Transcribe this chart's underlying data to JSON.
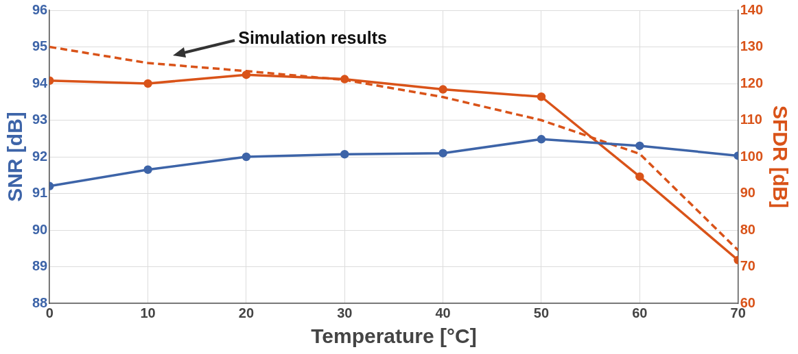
{
  "chart_data": {
    "type": "line",
    "xlabel": "Temperature [°C]",
    "ylabel": "SNR [dB]",
    "y2label": "SFDR [dB]",
    "x": [
      0,
      10,
      20,
      30,
      40,
      50,
      60,
      70
    ],
    "xlim": [
      0,
      70
    ],
    "xticks": [
      0,
      10,
      20,
      30,
      40,
      50,
      60,
      70
    ],
    "ylim": [
      88,
      96
    ],
    "yticks": [
      88,
      89,
      90,
      91,
      92,
      93,
      94,
      95,
      96
    ],
    "y2lim": [
      60,
      140
    ],
    "y2ticks": [
      60,
      70,
      80,
      90,
      100,
      110,
      120,
      130,
      140
    ],
    "grid": true,
    "legend": false,
    "marker": "circle",
    "series": [
      {
        "color": "#3d64a8",
        "values": [
          91.2,
          91.65,
          92.0,
          92.07,
          92.1,
          92.48,
          92.3,
          92.03
        ]
      },
      {
        "color": "#d95319",
        "axis": "y2",
        "values": [
          120.8,
          120,
          122.4,
          121.2,
          118.4,
          116.4,
          94.6,
          71.8
        ]
      },
      {
        "color": "#d95319",
        "axis": "y2",
        "line_style": "dashed",
        "marker": "none",
        "values": [
          130,
          125.6,
          123.4,
          121,
          116.3,
          110,
          100.8,
          74.5
        ]
      }
    ],
    "annotations": [
      "Simulation results"
    ]
  }
}
